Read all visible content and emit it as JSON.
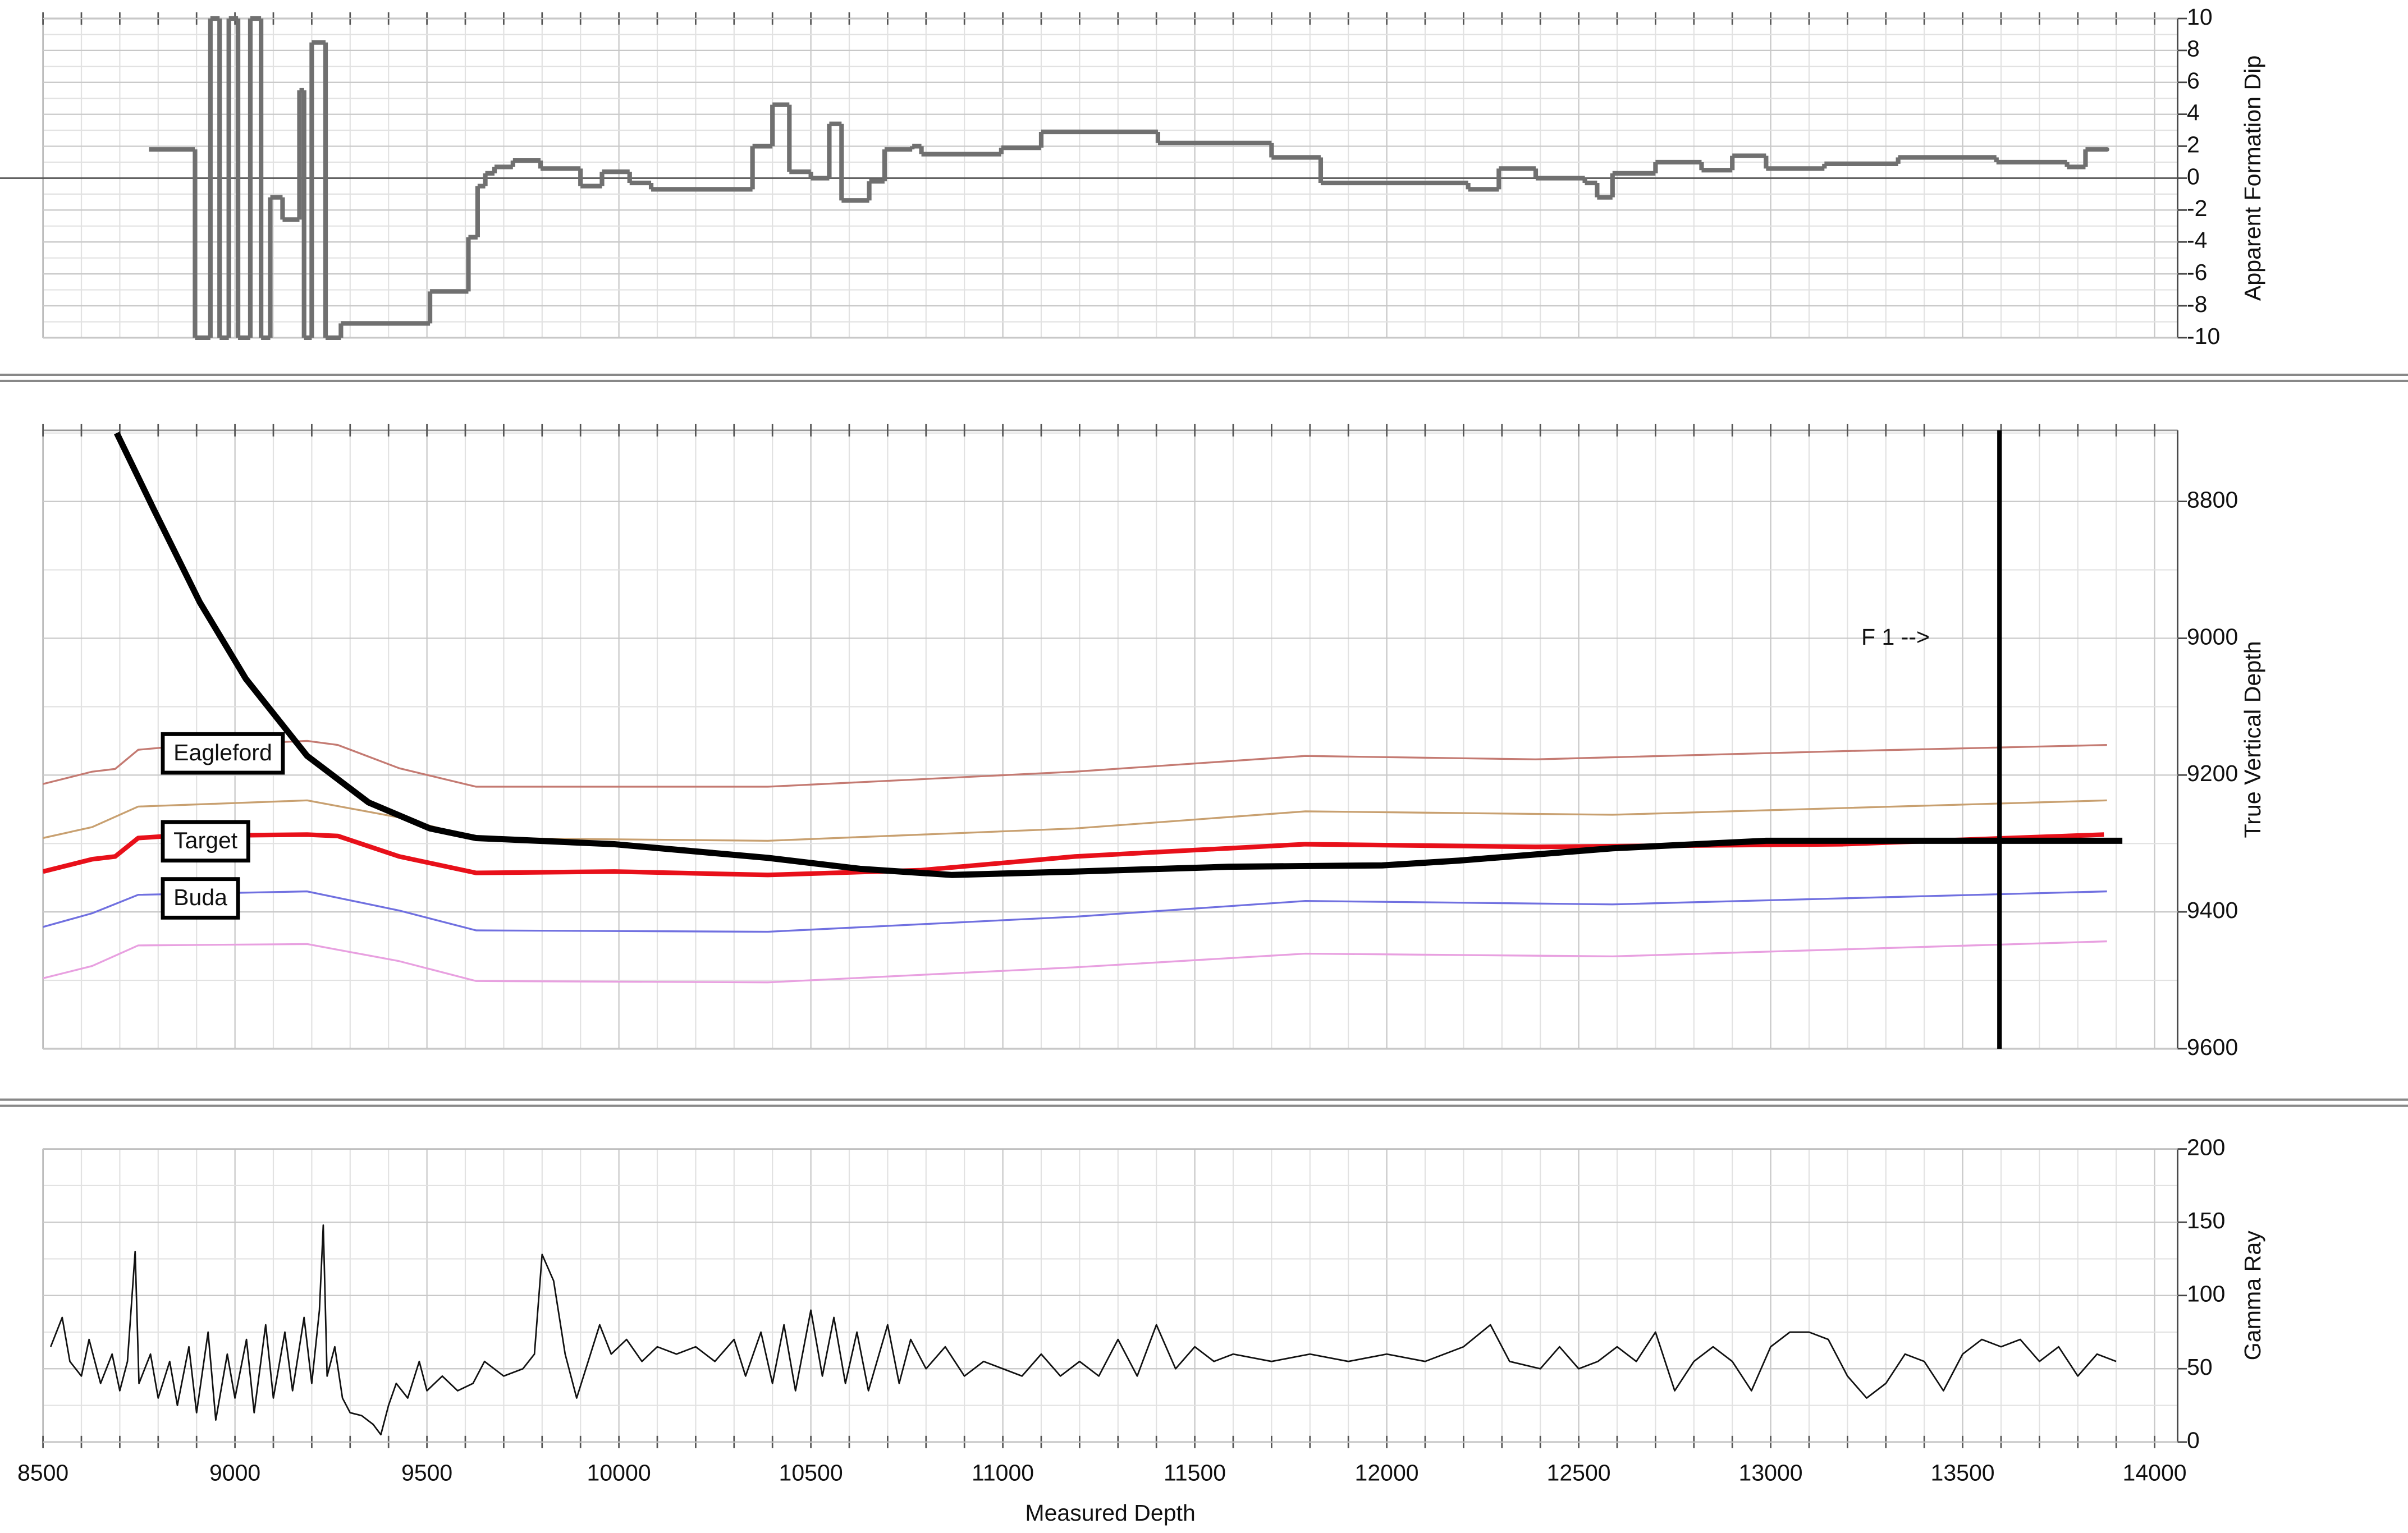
{
  "chart_data": [
    {
      "type": "step",
      "ylabel": "Apparent Formation Dip",
      "xlim": [
        8500,
        14060
      ],
      "ylim": [
        -10,
        10
      ],
      "yticks": [
        -10,
        -8,
        -6,
        -4,
        -2,
        0,
        2,
        4,
        6,
        8,
        10
      ],
      "grid": true,
      "series": [
        {
          "color": "#707070",
          "linewidth": 3,
          "x": [
            8776,
            8896,
            8936,
            8960,
            8984,
            9008,
            9040,
            9068,
            9092,
            9124,
            9168,
            9180,
            9200,
            9236,
            9276,
            9508,
            9608,
            9632,
            9652,
            9676,
            9724,
            9796,
            9900,
            9956,
            10028,
            10084,
            10348,
            10400,
            10444,
            10500,
            10548,
            10580,
            10652,
            10692,
            10764,
            10788,
            10996,
            11100,
            11404,
            11700,
            11828,
            12212,
            12292,
            12388,
            12516,
            12548,
            12588,
            12700,
            12820,
            12900,
            12988,
            13140,
            13332,
            13588,
            13772,
            13820,
            13876
          ],
          "values": [
            1.8,
            -10,
            10,
            -10,
            10,
            -10,
            10,
            -10,
            -1.2,
            -2.6,
            5.5,
            -10,
            8.5,
            -10,
            -9.1,
            -7.1,
            -3.7,
            -0.5,
            0.3,
            0.7,
            1.1,
            0.6,
            -0.5,
            0.4,
            -0.3,
            -0.7,
            2.0,
            4.6,
            0.4,
            0,
            3.4,
            -1.4,
            -0.2,
            1.8,
            2.0,
            1.5,
            1.9,
            2.9,
            2.2,
            1.3,
            -0.3,
            -0.7,
            0.6,
            0,
            -0.3,
            -1.2,
            0.3,
            1.0,
            0.5,
            1.4,
            0.6,
            0.9,
            1.3,
            1.0,
            0.7,
            1.8,
            1.8
          ]
        }
      ]
    },
    {
      "type": "line",
      "ylabel": "True Vertical Depth",
      "yaxis_inverted": true,
      "xlim": [
        8500,
        14060
      ],
      "ylim": [
        8696,
        9600
      ],
      "yticks": [
        8800,
        9000,
        9200,
        9400,
        9600
      ],
      "grid": true,
      "annotation": "F 1 -->",
      "vline": 13596,
      "series": [
        {
          "name": "Eagleford",
          "color": "#c47a72",
          "linewidth": 1.2,
          "x": [
            8500,
            8628,
            8688,
            8748,
            8828,
            9188,
            9268,
            9428,
            9628,
            10388,
            11188,
            11788,
            12388,
            13188,
            13876
          ],
          "values": [
            9213,
            9195,
            9191,
            9163,
            9159,
            9150,
            9156,
            9190,
            9217,
            9217,
            9195,
            9172,
            9177,
            9165,
            9156
          ]
        },
        {
          "color": "#c8a070",
          "linewidth": 1.2,
          "x": [
            8500,
            8628,
            8748,
            9188,
            9428,
            9628,
            10388,
            11188,
            11788,
            12588,
            13876
          ],
          "values": [
            9292,
            9276,
            9246,
            9237,
            9262,
            9292,
            9296,
            9278,
            9253,
            9258,
            9237
          ]
        },
        {
          "name": "Target",
          "color": "#e8101a",
          "linewidth": 3,
          "x": [
            8500,
            8628,
            8688,
            8748,
            8828,
            9188,
            9268,
            9428,
            9628,
            9988,
            10388,
            10788,
            11188,
            11788,
            12388,
            13188,
            13868
          ],
          "values": [
            9341,
            9323,
            9319,
            9292,
            9289,
            9287,
            9289,
            9319,
            9343,
            9341,
            9346,
            9339,
            9319,
            9301,
            9305,
            9301,
            9287
          ]
        },
        {
          "name": "Buda",
          "color": "#7070e0",
          "linewidth": 1.2,
          "x": [
            8500,
            8628,
            8748,
            9188,
            9428,
            9628,
            10388,
            11188,
            11788,
            12588,
            13876
          ],
          "values": [
            9422,
            9402,
            9375,
            9370,
            9398,
            9427,
            9429,
            9407,
            9384,
            9389,
            9370
          ]
        },
        {
          "color": "#e8a0e0",
          "linewidth": 1.2,
          "x": [
            8500,
            8628,
            8748,
            9188,
            9428,
            9628,
            10388,
            11188,
            11788,
            12588,
            13876
          ],
          "values": [
            9497,
            9479,
            9449,
            9447,
            9472,
            9501,
            9503,
            9481,
            9461,
            9465,
            9443
          ]
        },
        {
          "color": "#000000",
          "linewidth": 4,
          "x": [
            8692,
            8788,
            8908,
            9028,
            9188,
            9348,
            9508,
            9628,
            9988,
            10388,
            10628,
            10868,
            11188,
            11588,
            11988,
            12188,
            12588,
            12988,
            13388,
            13916
          ],
          "values": [
            8700,
            8811,
            8947,
            9059,
            9172,
            9240,
            9278,
            9292,
            9301,
            9321,
            9337,
            9346,
            9341,
            9334,
            9332,
            9325,
            9307,
            9296,
            9296,
            9296
          ]
        }
      ]
    },
    {
      "type": "line",
      "ylabel": "Gamma Ray",
      "xlabel": "Measured Depth",
      "xlim": [
        8500,
        14060
      ],
      "ylim": [
        0,
        200
      ],
      "yticks": [
        0,
        50,
        100,
        150,
        200
      ],
      "xticks": [
        8500,
        9000,
        9500,
        10000,
        10500,
        11000,
        11500,
        12000,
        12500,
        13000,
        13500,
        14000
      ],
      "grid": true,
      "series": [
        {
          "color": "#111111",
          "linewidth": 1,
          "x": [
            8520,
            8550,
            8570,
            8600,
            8620,
            8650,
            8680,
            8700,
            8720,
            8740,
            8750,
            8780,
            8800,
            8830,
            8850,
            8880,
            8900,
            8930,
            8950,
            8980,
            9000,
            9030,
            9050,
            9080,
            9100,
            9130,
            9150,
            9180,
            9200,
            9220,
            9230,
            9240,
            9260,
            9280,
            9300,
            9330,
            9360,
            9380,
            9400,
            9420,
            9450,
            9480,
            9500,
            9540,
            9580,
            9620,
            9650,
            9700,
            9750,
            9780,
            9800,
            9830,
            9860,
            9890,
            9920,
            9950,
            9980,
            10020,
            10060,
            10100,
            10150,
            10200,
            10250,
            10300,
            10330,
            10370,
            10400,
            10430,
            10460,
            10500,
            10530,
            10560,
            10590,
            10620,
            10650,
            10700,
            10730,
            10760,
            10800,
            10850,
            10900,
            10950,
            11000,
            11050,
            11100,
            11150,
            11200,
            11250,
            11300,
            11350,
            11400,
            11450,
            11500,
            11550,
            11600,
            11700,
            11800,
            11900,
            12000,
            12100,
            12200,
            12270,
            12320,
            12400,
            12450,
            12500,
            12550,
            12600,
            12650,
            12700,
            12750,
            12800,
            12850,
            12900,
            12950,
            13000,
            13050,
            13100,
            13150,
            13200,
            13250,
            13300,
            13350,
            13400,
            13450,
            13500,
            13550,
            13600,
            13650,
            13700,
            13750,
            13800,
            13850,
            13900
          ],
          "values": [
            65,
            85,
            55,
            45,
            70,
            40,
            60,
            35,
            55,
            130,
            40,
            60,
            30,
            55,
            25,
            65,
            20,
            75,
            15,
            60,
            30,
            70,
            20,
            80,
            30,
            75,
            35,
            85,
            40,
            90,
            148,
            45,
            65,
            30,
            20,
            18,
            12,
            5,
            25,
            40,
            30,
            55,
            35,
            45,
            35,
            40,
            55,
            45,
            50,
            60,
            128,
            110,
            60,
            30,
            55,
            80,
            60,
            70,
            55,
            65,
            60,
            65,
            55,
            70,
            45,
            75,
            40,
            80,
            35,
            90,
            45,
            85,
            40,
            75,
            35,
            80,
            40,
            70,
            50,
            65,
            45,
            55,
            50,
            45,
            60,
            45,
            55,
            45,
            70,
            45,
            80,
            50,
            65,
            55,
            60,
            55,
            60,
            55,
            60,
            55,
            65,
            80,
            55,
            50,
            65,
            50,
            55,
            65,
            55,
            75,
            35,
            55,
            65,
            55,
            35,
            65,
            75,
            75,
            70,
            45,
            30,
            40,
            60,
            55,
            35,
            60,
            70,
            65,
            70,
            55,
            65,
            45,
            60,
            55
          ]
        }
      ]
    }
  ]
}
